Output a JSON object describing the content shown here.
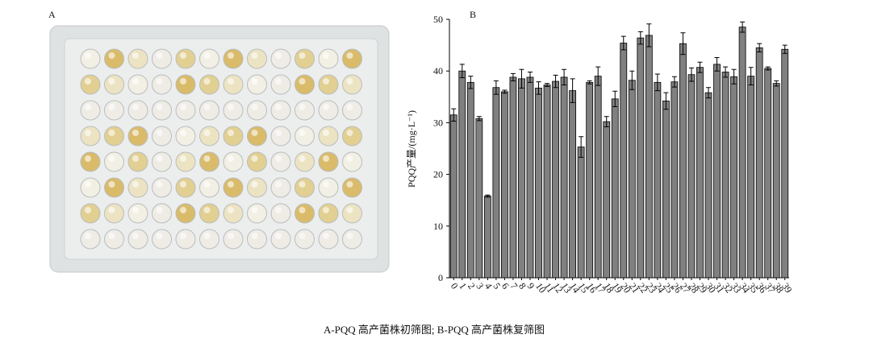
{
  "panel_a": {
    "label": "A"
  },
  "chart_data": {
    "type": "bar",
    "label": "B",
    "ylabel": "PQQ产量/(mg·L⁻¹)",
    "categories": [
      "0",
      "1",
      "2",
      "3",
      "4",
      "5",
      "6",
      "7",
      "8",
      "9",
      "10",
      "11",
      "12",
      "13",
      "14",
      "15",
      "16",
      "17",
      "18",
      "19",
      "20",
      "21",
      "22",
      "23",
      "24",
      "25",
      "26",
      "27",
      "28",
      "29",
      "30",
      "31",
      "32",
      "33",
      "34",
      "35",
      "36",
      "37",
      "38",
      "39"
    ],
    "values": [
      31.5,
      40,
      37.8,
      30.8,
      15.8,
      36.8,
      36,
      38.8,
      38.5,
      38.8,
      36.7,
      37.3,
      38,
      38.8,
      36.2,
      25.3,
      37.8,
      39,
      30.2,
      34.6,
      45.4,
      38.2,
      46.4,
      46.9,
      37.8,
      34.2,
      37.9,
      45.3,
      39.3,
      40.7,
      35.8,
      41.3,
      39.8,
      38.9,
      48.5,
      39,
      44.5,
      40.5,
      37.6,
      44.2
    ],
    "errors": [
      1.2,
      1.3,
      1.2,
      0.4,
      0.2,
      1.3,
      0.3,
      0.7,
      1.8,
      1,
      1.2,
      0.3,
      1.2,
      1.5,
      2.3,
      2,
      0.3,
      1.8,
      1,
      1.5,
      1.3,
      1.8,
      1.2,
      2.2,
      1.6,
      1.6,
      1,
      2.1,
      1.3,
      1,
      1,
      1.3,
      1,
      1.4,
      1,
      1.7,
      0.8,
      0.3,
      0.5,
      0.8
    ],
    "color": "#808080",
    "ylim": [
      0,
      50
    ],
    "yticks": [
      0,
      10,
      20,
      30,
      40,
      50
    ]
  },
  "caption": "A-PQQ 高产菌株初筛图; B-PQQ 高产菌株复筛图"
}
